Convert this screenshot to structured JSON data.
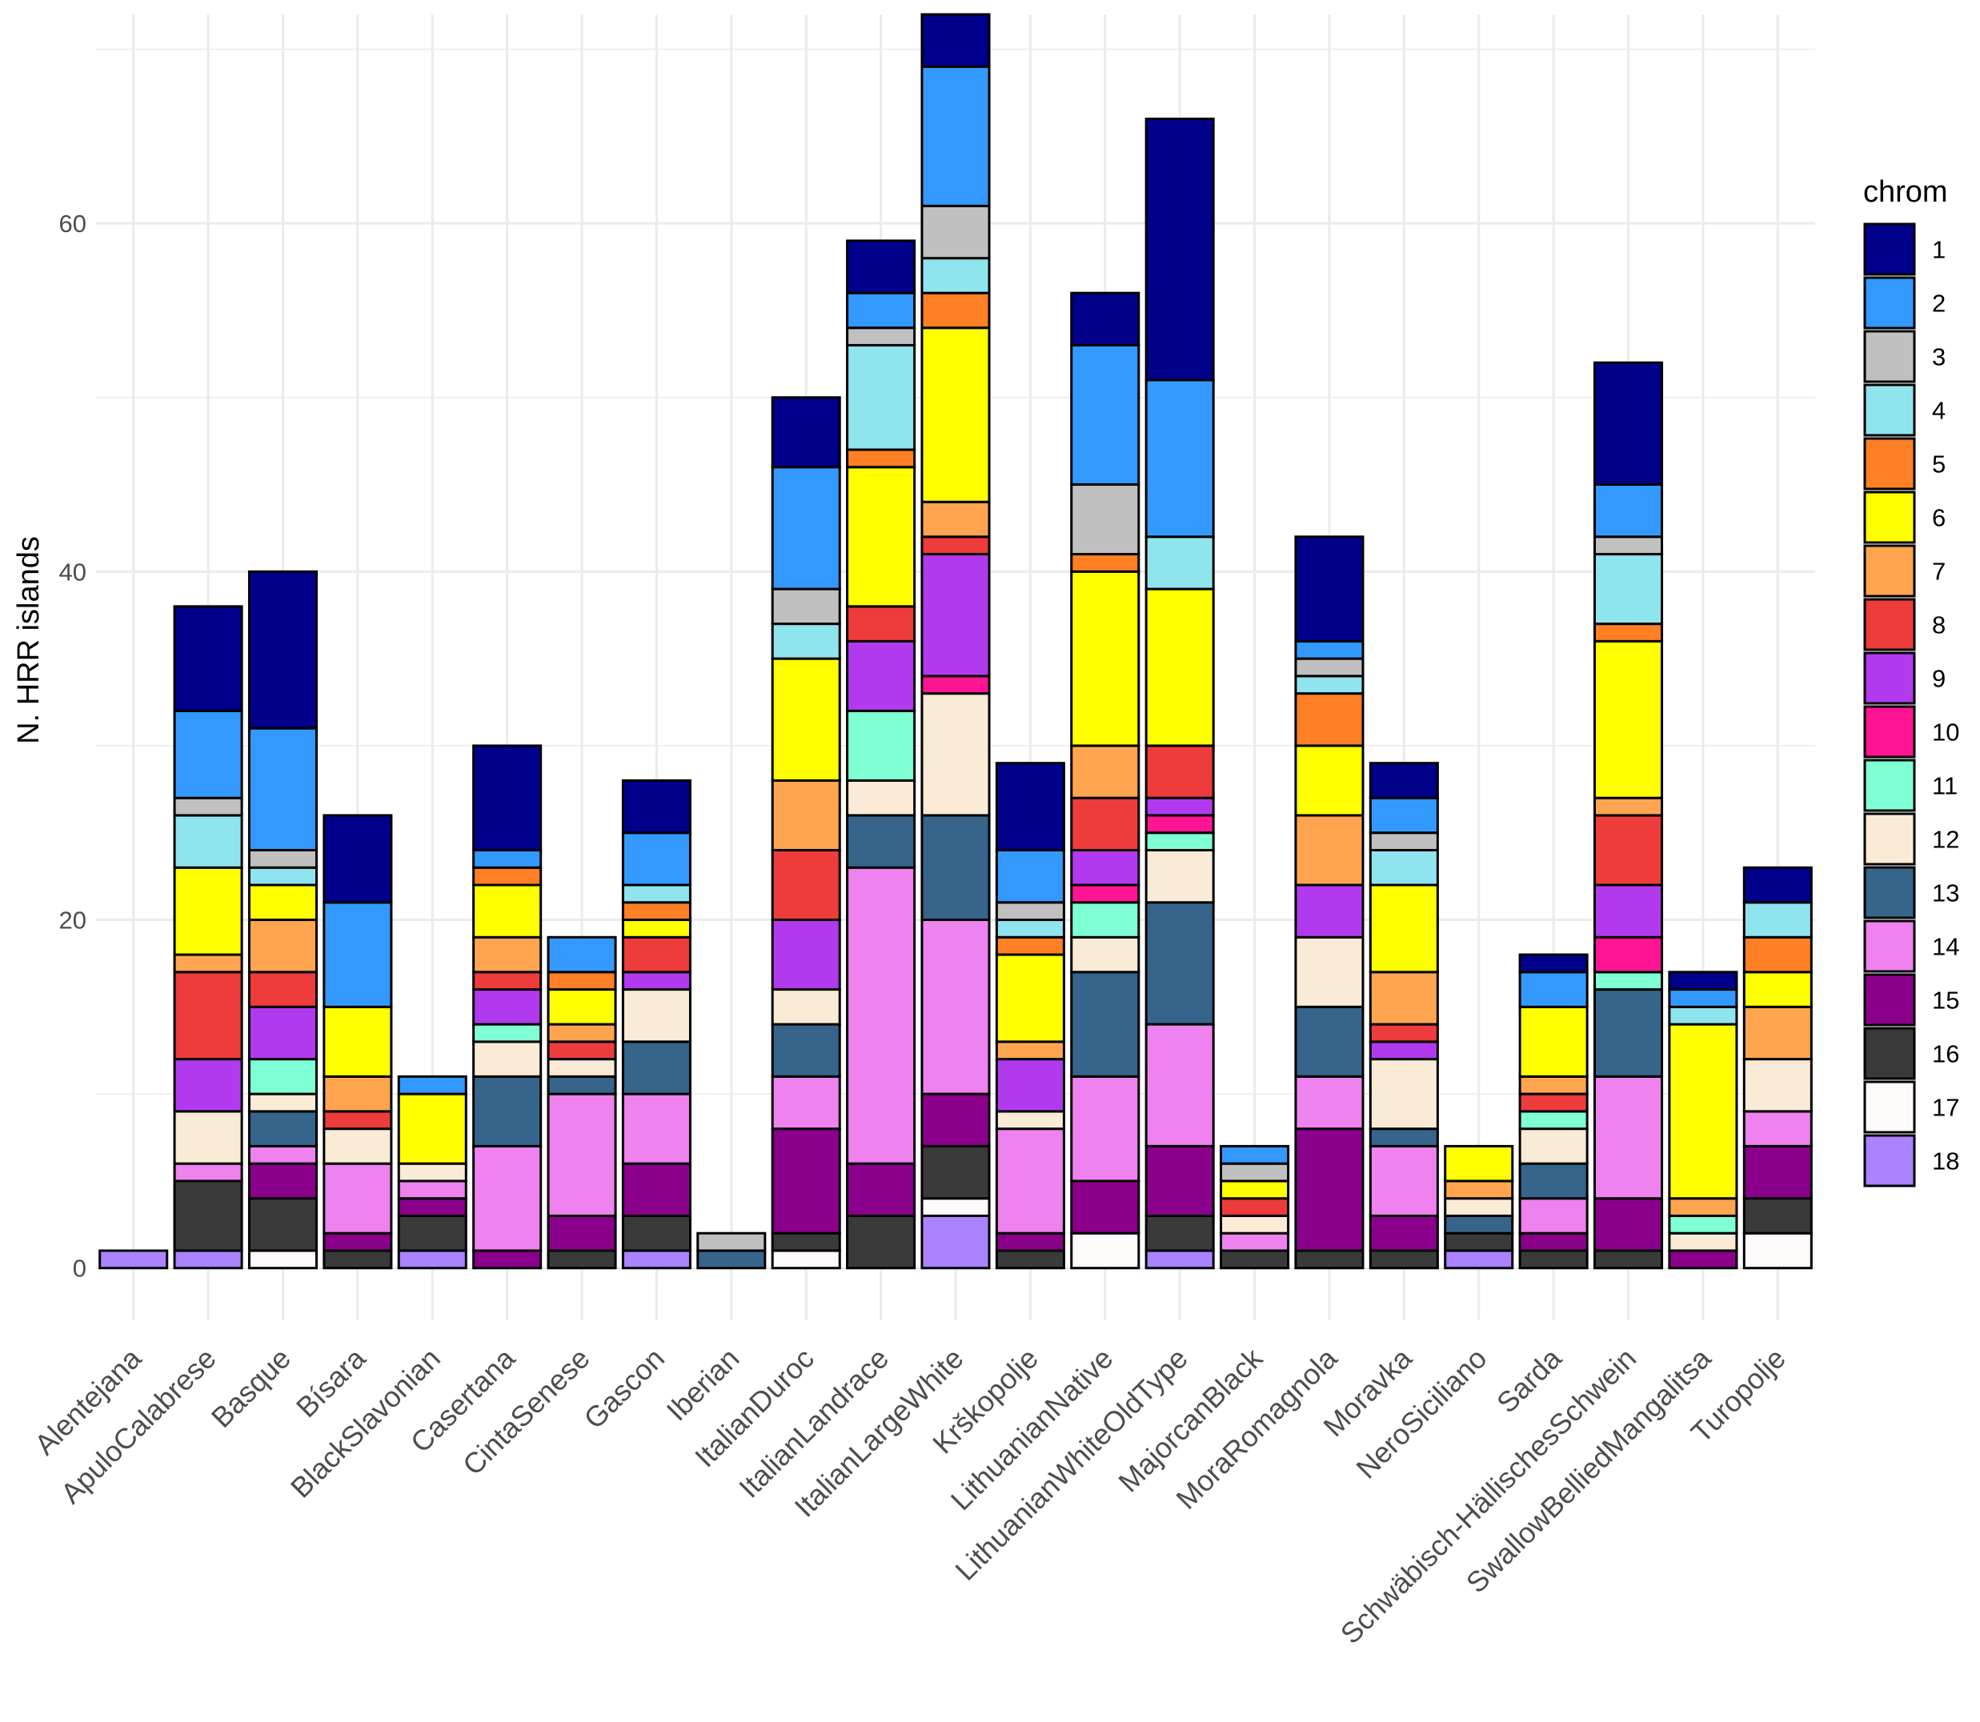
{
  "chart_data": {
    "type": "bar",
    "stacked": true,
    "title": "",
    "xlabel": "",
    "ylabel": "N. HRR islands",
    "ylim": [
      -3,
      72
    ],
    "yticks": [
      0,
      20,
      40,
      60
    ],
    "grid": true,
    "legend_title": "chrom",
    "legend_position": "right",
    "categories": [
      "Alentejana",
      "ApuloCalabrese",
      "Basque",
      "Bísara",
      "BlackSlavonian",
      "Casertana",
      "CintaSenese",
      "Gascon",
      "Iberian",
      "ItalianDuroc",
      "ItalianLandrace",
      "ItalianLargeWhite",
      "Krškopolje",
      "LithuanianNative",
      "LithuanianWhiteOldType",
      "MajorcanBlack",
      "MoraRomagnola",
      "Moravka",
      "NeroSiciliano",
      "Sarda",
      "Schwäbisch-HällischesSchwein",
      "SwallowBelliedMangalitsa",
      "Turopolje"
    ],
    "series": [
      {
        "name": "1",
        "color": "#00008B",
        "values": [
          0,
          6,
          9,
          5,
          0,
          6,
          0,
          3,
          0,
          4,
          3,
          3,
          5,
          3,
          15,
          0,
          6,
          2,
          0,
          1,
          7,
          1,
          2
        ]
      },
      {
        "name": "2",
        "color": "#3399FF",
        "values": [
          0,
          5,
          7,
          6,
          1,
          1,
          2,
          3,
          0,
          7,
          2,
          8,
          3,
          8,
          9,
          1,
          1,
          2,
          0,
          2,
          3,
          1,
          0
        ]
      },
      {
        "name": "3",
        "color": "#C0C0C0",
        "values": [
          0,
          1,
          1,
          0,
          0,
          0,
          0,
          0,
          1,
          2,
          1,
          3,
          1,
          4,
          0,
          1,
          1,
          1,
          0,
          0,
          1,
          0,
          0
        ]
      },
      {
        "name": "4",
        "color": "#90E4EE",
        "values": [
          0,
          3,
          1,
          0,
          0,
          0,
          0,
          1,
          0,
          2,
          6,
          2,
          1,
          0,
          3,
          0,
          1,
          2,
          0,
          0,
          4,
          1,
          2
        ]
      },
      {
        "name": "5",
        "color": "#FF7F24",
        "values": [
          0,
          0,
          0,
          0,
          0,
          1,
          1,
          1,
          0,
          0,
          1,
          2,
          1,
          1,
          0,
          0,
          3,
          0,
          0,
          0,
          1,
          0,
          2
        ]
      },
      {
        "name": "6",
        "color": "#FFFF00",
        "values": [
          0,
          5,
          2,
          4,
          4,
          3,
          2,
          1,
          0,
          7,
          8,
          10,
          5,
          10,
          9,
          1,
          4,
          5,
          2,
          4,
          9,
          10,
          2
        ]
      },
      {
        "name": "7",
        "color": "#FFA54F",
        "values": [
          0,
          1,
          3,
          2,
          0,
          2,
          1,
          0,
          0,
          4,
          0,
          2,
          1,
          3,
          0,
          0,
          4,
          3,
          1,
          1,
          1,
          1,
          3
        ]
      },
      {
        "name": "8",
        "color": "#EE3B3B",
        "values": [
          0,
          5,
          2,
          1,
          0,
          1,
          1,
          2,
          0,
          4,
          2,
          1,
          0,
          3,
          3,
          1,
          0,
          1,
          0,
          1,
          4,
          0,
          0
        ]
      },
      {
        "name": "9",
        "color": "#B23AEE",
        "values": [
          0,
          3,
          3,
          0,
          0,
          2,
          0,
          1,
          0,
          4,
          4,
          7,
          3,
          2,
          1,
          0,
          3,
          1,
          0,
          0,
          3,
          0,
          0
        ]
      },
      {
        "name": "10",
        "color": "#FF1493",
        "values": [
          0,
          0,
          0,
          0,
          0,
          0,
          0,
          0,
          0,
          0,
          0,
          1,
          0,
          1,
          1,
          0,
          0,
          0,
          0,
          0,
          2,
          0,
          0
        ]
      },
      {
        "name": "11",
        "color": "#7FFFD4",
        "values": [
          0,
          0,
          2,
          0,
          0,
          1,
          0,
          0,
          0,
          0,
          4,
          0,
          0,
          2,
          1,
          0,
          0,
          0,
          0,
          1,
          1,
          1,
          0
        ]
      },
      {
        "name": "12",
        "color": "#FAEBD7",
        "values": [
          0,
          3,
          1,
          2,
          1,
          2,
          1,
          3,
          0,
          2,
          2,
          7,
          1,
          2,
          3,
          1,
          4,
          4,
          1,
          2,
          0,
          1,
          3
        ]
      },
      {
        "name": "13",
        "color": "#36648B",
        "values": [
          0,
          0,
          2,
          0,
          0,
          4,
          1,
          3,
          1,
          3,
          3,
          6,
          0,
          6,
          7,
          0,
          4,
          1,
          1,
          2,
          5,
          0,
          0
        ]
      },
      {
        "name": "14",
        "color": "#EE82EE",
        "values": [
          0,
          1,
          1,
          4,
          1,
          6,
          7,
          4,
          0,
          3,
          17,
          10,
          6,
          6,
          7,
          1,
          3,
          4,
          0,
          2,
          7,
          0,
          2
        ]
      },
      {
        "name": "15",
        "color": "#8B008B",
        "values": [
          0,
          0,
          2,
          1,
          1,
          1,
          2,
          3,
          0,
          6,
          3,
          3,
          1,
          3,
          4,
          0,
          7,
          2,
          0,
          1,
          3,
          1,
          3
        ]
      },
      {
        "name": "16",
        "color": "#3A3A3A",
        "values": [
          0,
          4,
          3,
          1,
          2,
          0,
          1,
          2,
          0,
          1,
          3,
          3,
          1,
          0,
          2,
          1,
          1,
          1,
          1,
          1,
          1,
          0,
          2
        ]
      },
      {
        "name": "17",
        "color": "#FFFAFA",
        "values": [
          0,
          0,
          1,
          0,
          0,
          0,
          0,
          0,
          0,
          1,
          0,
          1,
          0,
          2,
          0,
          0,
          0,
          0,
          0,
          0,
          0,
          0,
          2
        ]
      },
      {
        "name": "18",
        "color": "#AB82FF",
        "values": [
          1,
          1,
          0,
          0,
          1,
          0,
          0,
          1,
          0,
          0,
          0,
          3,
          0,
          0,
          1,
          0,
          0,
          0,
          1,
          0,
          0,
          0,
          0
        ]
      }
    ]
  }
}
